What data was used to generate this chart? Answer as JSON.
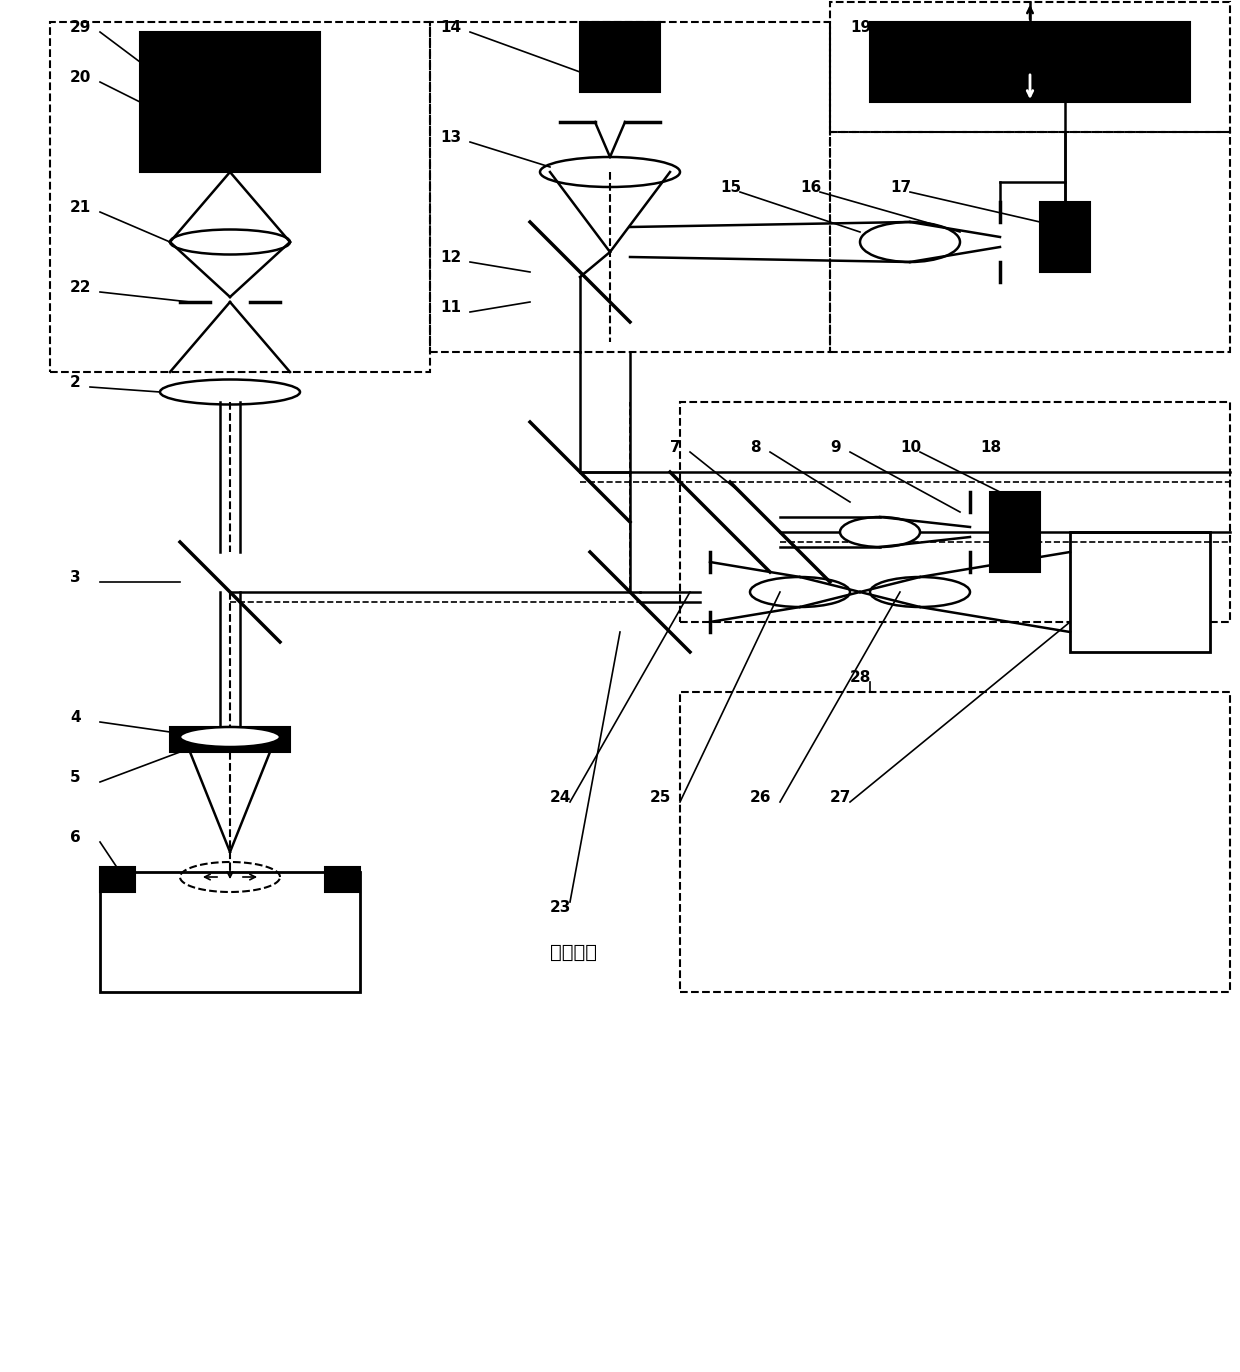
{
  "title": "",
  "label_text": "振动样品",
  "background": "#ffffff",
  "line_color": "#000000",
  "dashed_color": "#000000",
  "fig_width": 12.4,
  "fig_height": 13.72
}
